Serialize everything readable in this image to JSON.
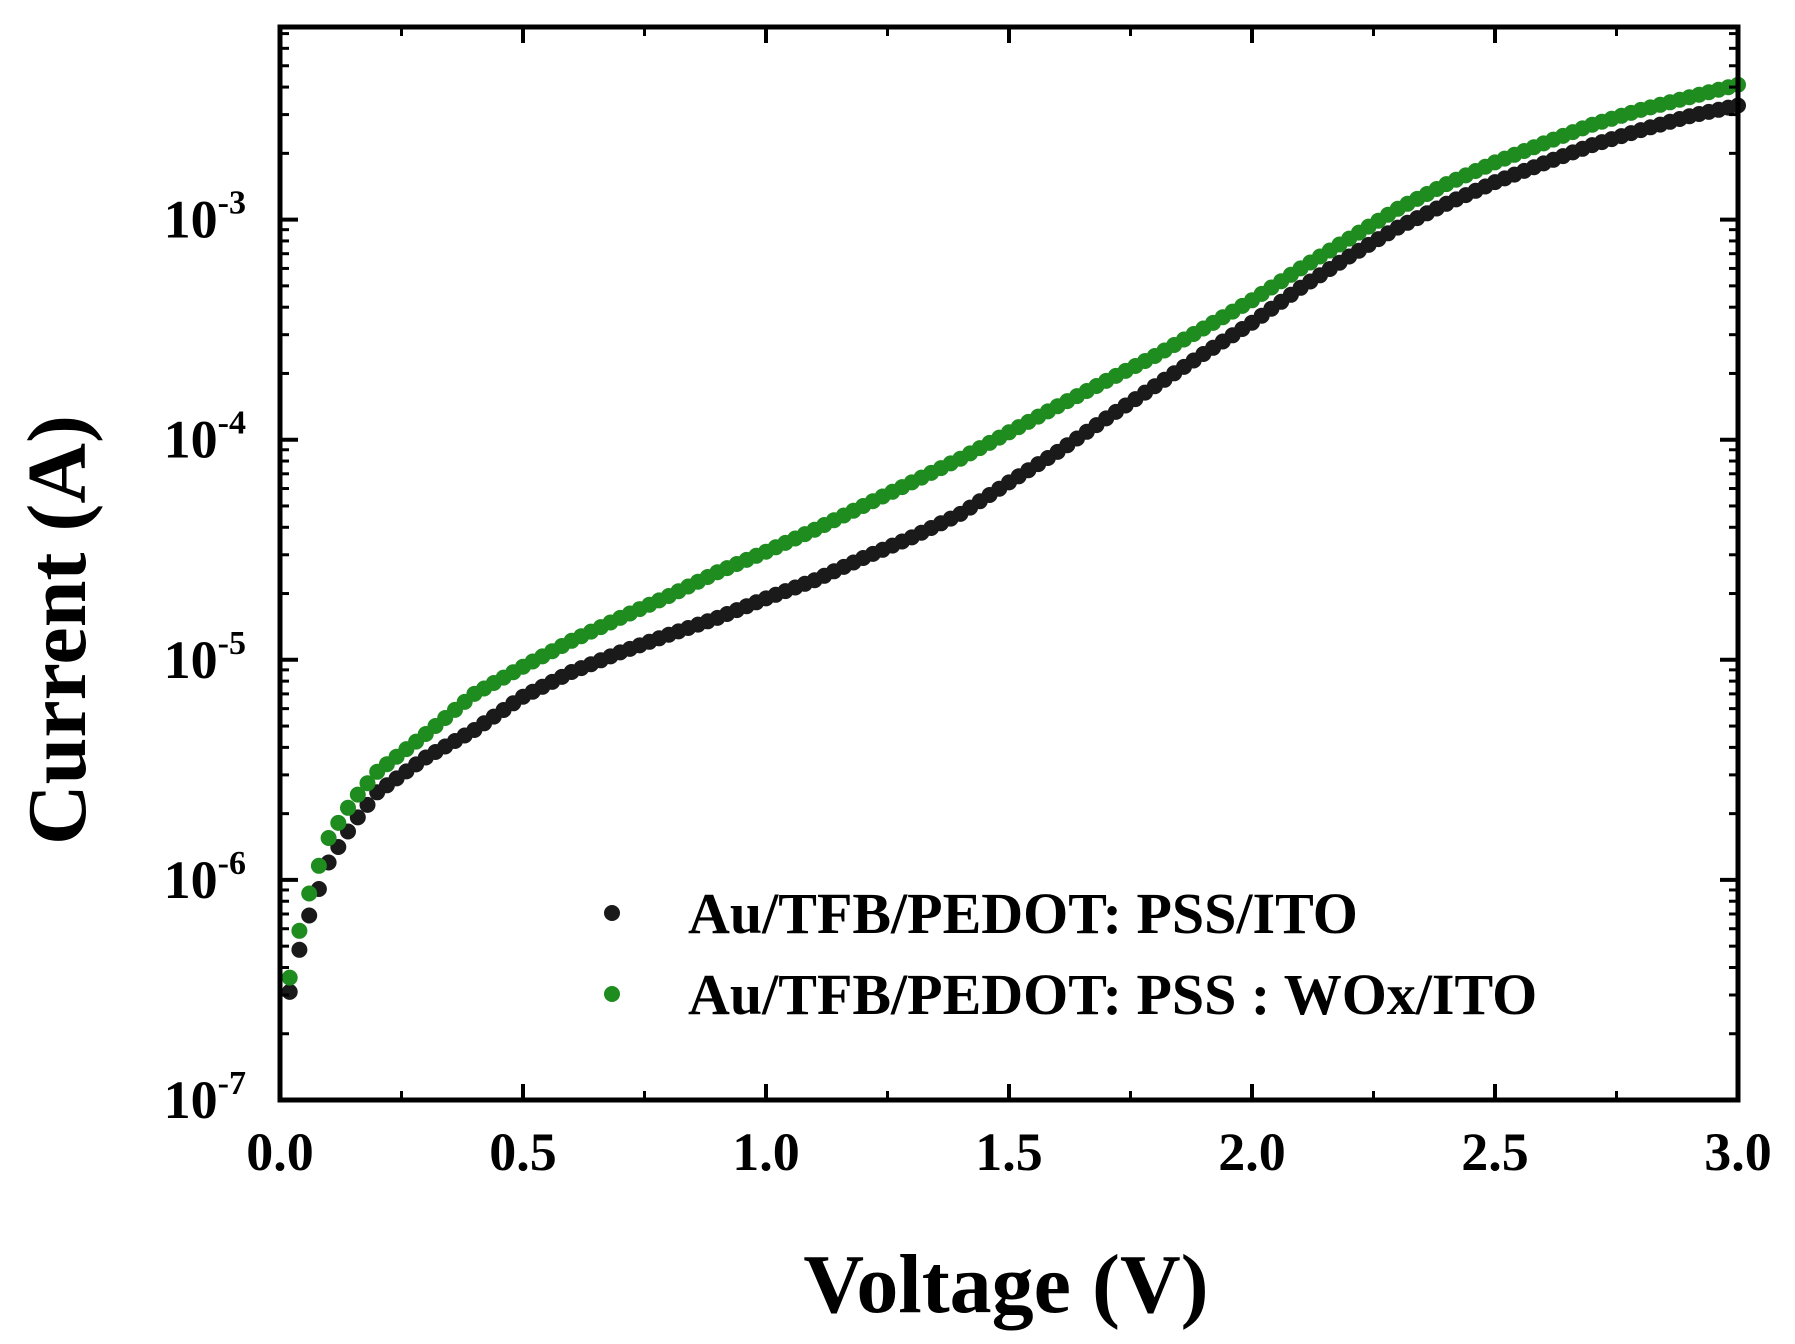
{
  "chart_data": {
    "type": "scatter",
    "title": "",
    "xlabel": "Voltage (V)",
    "ylabel": "Current (A)",
    "xlim": [
      0.0,
      3.0
    ],
    "ylim": [
      1e-07,
      0.0075
    ],
    "yscale": "log",
    "xticks": [
      {
        "value": 0.0,
        "label": "0.0"
      },
      {
        "value": 0.5,
        "label": "0.5"
      },
      {
        "value": 1.0,
        "label": "1.0"
      },
      {
        "value": 1.5,
        "label": "1.5"
      },
      {
        "value": 2.0,
        "label": "2.0"
      },
      {
        "value": 2.5,
        "label": "2.5"
      },
      {
        "value": 3.0,
        "label": "3.0"
      }
    ],
    "yticks": [
      {
        "value": 1e-07,
        "base": "10",
        "exp": "-7"
      },
      {
        "value": 1e-06,
        "base": "10",
        "exp": "-6"
      },
      {
        "value": 1e-05,
        "base": "10",
        "exp": "-5"
      },
      {
        "value": 0.0001,
        "base": "10",
        "exp": "-4"
      },
      {
        "value": 0.001,
        "base": "10",
        "exp": "-3"
      }
    ],
    "legend_position": "bottom-right",
    "series": [
      {
        "name": "Au/TFB/PEDOT: PSS/ITO",
        "color": "#1a1a1a",
        "anchors": [
          [
            0.02,
            3.1e-07
          ],
          [
            0.05,
            6e-07
          ],
          [
            0.1,
            1.2e-06
          ],
          [
            0.15,
            1.8e-06
          ],
          [
            0.2,
            2.5e-06
          ],
          [
            0.3,
            3.6e-06
          ],
          [
            0.4,
            4.8e-06
          ],
          [
            0.5,
            6.8e-06
          ],
          [
            0.6,
            8.8e-06
          ],
          [
            0.7,
            1.08e-05
          ],
          [
            0.8,
            1.3e-05
          ],
          [
            0.9,
            1.55e-05
          ],
          [
            1.0,
            1.9e-05
          ],
          [
            1.1,
            2.3e-05
          ],
          [
            1.2,
            2.9e-05
          ],
          [
            1.3,
            3.6e-05
          ],
          [
            1.4,
            4.6e-05
          ],
          [
            1.5,
            6.4e-05
          ],
          [
            1.6,
            8.8e-05
          ],
          [
            1.7,
            0.000125
          ],
          [
            1.8,
            0.000175
          ],
          [
            1.9,
            0.000245
          ],
          [
            2.0,
            0.00034
          ],
          [
            2.1,
            0.00049
          ],
          [
            2.2,
            0.00068
          ],
          [
            2.3,
            0.00092
          ],
          [
            2.4,
            0.00118
          ],
          [
            2.5,
            0.00148
          ],
          [
            2.6,
            0.0018
          ],
          [
            2.7,
            0.00218
          ],
          [
            2.8,
            0.00255
          ],
          [
            2.9,
            0.00295
          ],
          [
            3.0,
            0.0033
          ]
        ]
      },
      {
        "name": "Au/TFB/PEDOT: PSS : WOx/ITO",
        "color": "#1e8c1e",
        "anchors": [
          [
            0.02,
            3.6e-07
          ],
          [
            0.05,
            7.5e-07
          ],
          [
            0.1,
            1.55e-06
          ],
          [
            0.15,
            2.3e-06
          ],
          [
            0.2,
            3.1e-06
          ],
          [
            0.3,
            4.6e-06
          ],
          [
            0.4,
            7e-06
          ],
          [
            0.5,
            9.3e-06
          ],
          [
            0.6,
            1.22e-05
          ],
          [
            0.7,
            1.55e-05
          ],
          [
            0.8,
            1.95e-05
          ],
          [
            0.9,
            2.5e-05
          ],
          [
            1.0,
            3.1e-05
          ],
          [
            1.1,
            3.9e-05
          ],
          [
            1.2,
            5e-05
          ],
          [
            1.3,
            6.4e-05
          ],
          [
            1.4,
            8.2e-05
          ],
          [
            1.5,
            0.000108
          ],
          [
            1.6,
            0.000142
          ],
          [
            1.7,
            0.000185
          ],
          [
            1.8,
            0.00024
          ],
          [
            1.9,
            0.00032
          ],
          [
            2.0,
            0.00043
          ],
          [
            2.1,
            0.0006
          ],
          [
            2.2,
            0.00082
          ],
          [
            2.3,
            0.00112
          ],
          [
            2.4,
            0.00145
          ],
          [
            2.5,
            0.00182
          ],
          [
            2.6,
            0.00222
          ],
          [
            2.7,
            0.0027
          ],
          [
            2.8,
            0.00315
          ],
          [
            2.9,
            0.0036
          ],
          [
            3.0,
            0.0041
          ]
        ]
      }
    ]
  }
}
